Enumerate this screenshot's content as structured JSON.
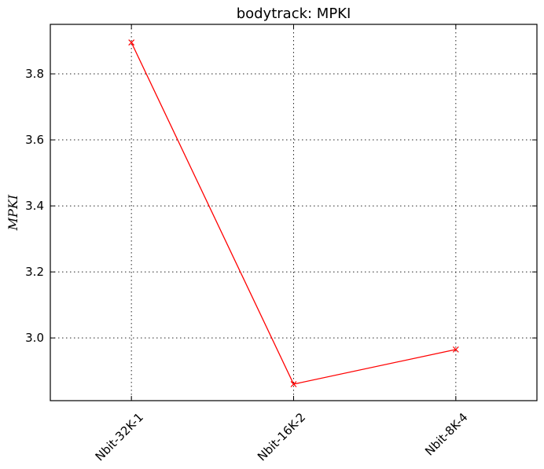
{
  "chart_data": {
    "type": "line",
    "title": "bodytrack: MPKI",
    "xlabel": "",
    "ylabel": "MPKI",
    "categories": [
      "Nbit-32K-1",
      "Nbit-16K-2",
      "Nbit-8K-4"
    ],
    "series": [
      {
        "values": [
          3.895,
          2.86,
          2.965
        ],
        "color": "#ff0000",
        "marker": "x"
      }
    ],
    "ylim": [
      2.81,
      3.95
    ],
    "yticks": [
      3.0,
      3.2,
      3.4,
      3.6,
      3.8
    ],
    "ytick_labels": [
      "3.0",
      "3.2",
      "3.4",
      "3.6",
      "3.8"
    ],
    "grid": true,
    "xtick_rotation_deg": 45
  }
}
